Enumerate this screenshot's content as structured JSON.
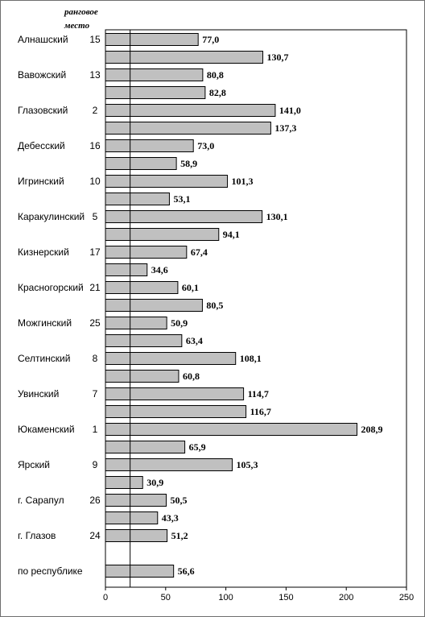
{
  "chart_data": {
    "type": "bar",
    "orientation": "horizontal",
    "rank_header": [
      "ранговое",
      "место"
    ],
    "categories": [
      {
        "label": "Алнашский",
        "rank": "15"
      },
      {
        "label": "",
        "rank": ""
      },
      {
        "label": "Вавожский",
        "rank": "13"
      },
      {
        "label": "",
        "rank": ""
      },
      {
        "label": "Глазовский",
        "rank": "2"
      },
      {
        "label": "",
        "rank": ""
      },
      {
        "label": "Дебесский",
        "rank": "16"
      },
      {
        "label": "",
        "rank": ""
      },
      {
        "label": "Игринский",
        "rank": "10"
      },
      {
        "label": "",
        "rank": ""
      },
      {
        "label": "Каракулинский",
        "rank": "5"
      },
      {
        "label": "",
        "rank": ""
      },
      {
        "label": "Кизнерский",
        "rank": "17"
      },
      {
        "label": "",
        "rank": ""
      },
      {
        "label": "Красногорский",
        "rank": "21"
      },
      {
        "label": "",
        "rank": ""
      },
      {
        "label": "Можгинский",
        "rank": "25"
      },
      {
        "label": "",
        "rank": ""
      },
      {
        "label": "Селтинский",
        "rank": "8"
      },
      {
        "label": "",
        "rank": ""
      },
      {
        "label": "Увинский",
        "rank": "7"
      },
      {
        "label": "",
        "rank": ""
      },
      {
        "label": "Юкаменский",
        "rank": "1"
      },
      {
        "label": "",
        "rank": ""
      },
      {
        "label": "Ярский",
        "rank": "9"
      },
      {
        "label": "",
        "rank": ""
      },
      {
        "label": "г. Сарапул",
        "rank": "26"
      },
      {
        "label": "",
        "rank": ""
      },
      {
        "label": "г. Глазов",
        "rank": "24"
      },
      {
        "label": "",
        "rank": ""
      },
      {
        "label": "по республике",
        "rank": ""
      }
    ],
    "values": [
      77.0,
      130.7,
      80.8,
      82.8,
      141.0,
      137.3,
      73.0,
      58.9,
      101.3,
      53.1,
      130.1,
      94.1,
      67.4,
      34.6,
      60.1,
      80.5,
      50.9,
      63.4,
      108.1,
      60.8,
      114.7,
      116.7,
      208.9,
      65.9,
      105.3,
      30.9,
      50.5,
      43.3,
      51.2,
      null,
      56.6
    ],
    "value_labels": [
      "77,0",
      "130,7",
      "80,8",
      "82,8",
      "141,0",
      "137,3",
      "73,0",
      "58,9",
      "101,3",
      "53,1",
      "130,1",
      "94,1",
      "67,4",
      "34,6",
      "60,1",
      "80,5",
      "50,9",
      "63,4",
      "108,1",
      "60,8",
      "114,7",
      "116,7",
      "208,9",
      "65,9",
      "105,3",
      "30,9",
      "50,5",
      "43,3",
      "51,2",
      "",
      "56,6"
    ],
    "xlim": [
      0,
      250
    ],
    "xticks": [
      "0",
      "50",
      "100",
      "150",
      "200",
      "250"
    ],
    "reference_line_x": 20.5,
    "bar_color": "#c0c0c0",
    "bar_edge_color": "#000000",
    "grid": false
  }
}
